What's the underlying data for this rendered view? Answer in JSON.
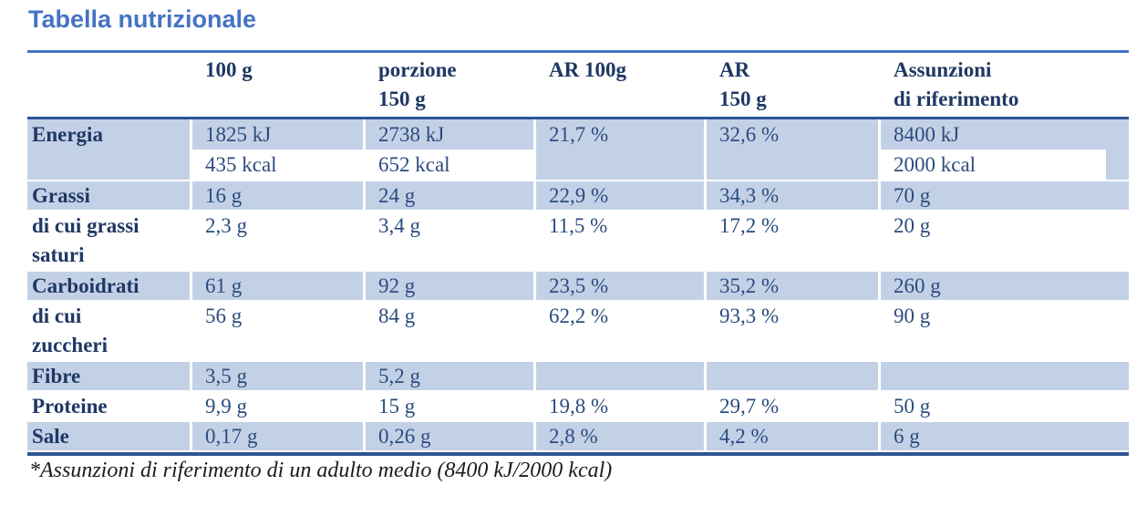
{
  "title": "Tabella nutrizionale",
  "colors": {
    "accent_blue": "#4573c4",
    "dark_rule": "#2e5596",
    "band_blue": "#c3d1e7",
    "label_navy": "#1f3864",
    "value_navy": "#2b4c7e"
  },
  "table": {
    "columns": [
      {
        "lines": [
          "",
          ""
        ]
      },
      {
        "lines": [
          "100 g",
          ""
        ]
      },
      {
        "lines": [
          "porzione",
          "150 g"
        ]
      },
      {
        "lines": [
          "AR 100g",
          ""
        ]
      },
      {
        "lines": [
          "AR",
          "150 g"
        ]
      },
      {
        "lines": [
          "Assunzioni",
          "di riferimento"
        ]
      }
    ],
    "rows": [
      {
        "id": "energia",
        "label_lines": [
          "Energia"
        ],
        "shaded": true,
        "energia": true,
        "cells": [
          [
            "1825 kJ",
            "435 kcal"
          ],
          [
            "2738 kJ",
            "652 kcal"
          ],
          [
            "21,7 %",
            ""
          ],
          [
            "32,6 %",
            ""
          ],
          [
            "8400 kJ",
            "2000 kcal"
          ]
        ],
        "white_full_cols": [
          0,
          1
        ],
        "white_part_cols": [
          4
        ]
      },
      {
        "id": "grassi",
        "label_lines": [
          "Grassi"
        ],
        "shaded": true,
        "cells": [
          [
            "16 g"
          ],
          [
            "24 g"
          ],
          [
            "22,9 %"
          ],
          [
            "34,3 %"
          ],
          [
            "70 g"
          ]
        ]
      },
      {
        "id": "grassi-saturi",
        "label_lines": [
          "di cui grassi",
          "saturi"
        ],
        "shaded": false,
        "cells": [
          [
            "2,3 g"
          ],
          [
            "3,4 g"
          ],
          [
            "11,5 %"
          ],
          [
            "17,2 %"
          ],
          [
            "20 g"
          ]
        ]
      },
      {
        "id": "carboidrati",
        "label_lines": [
          "Carboidrati"
        ],
        "shaded": true,
        "cells": [
          [
            "61 g"
          ],
          [
            "92 g"
          ],
          [
            "23,5 %"
          ],
          [
            "35,2 %"
          ],
          [
            "260 g"
          ]
        ]
      },
      {
        "id": "zuccheri",
        "label_lines": [
          "di cui",
          "zuccheri"
        ],
        "shaded": false,
        "cells": [
          [
            "56 g"
          ],
          [
            "84 g"
          ],
          [
            "62,2 %"
          ],
          [
            "93,3 %"
          ],
          [
            "90 g"
          ]
        ]
      },
      {
        "id": "fibre",
        "label_lines": [
          "Fibre"
        ],
        "shaded": true,
        "cells": [
          [
            "3,5 g"
          ],
          [
            "5,2 g"
          ],
          [
            ""
          ],
          [
            ""
          ],
          [
            ""
          ]
        ]
      },
      {
        "id": "proteine",
        "label_lines": [
          "Proteine"
        ],
        "shaded": false,
        "cells": [
          [
            "9,9 g"
          ],
          [
            "15 g"
          ],
          [
            "19,8 %"
          ],
          [
            "29,7 %"
          ],
          [
            "50 g"
          ]
        ]
      },
      {
        "id": "sale",
        "label_lines": [
          "Sale"
        ],
        "shaded": true,
        "cells": [
          [
            "0,17 g"
          ],
          [
            "0,26 g"
          ],
          [
            "2,8 %"
          ],
          [
            "4,2 %"
          ],
          [
            "6 g"
          ]
        ]
      }
    ]
  },
  "footnote": "*Assunzioni di riferimento di un adulto medio (8400 kJ/2000 kcal)"
}
